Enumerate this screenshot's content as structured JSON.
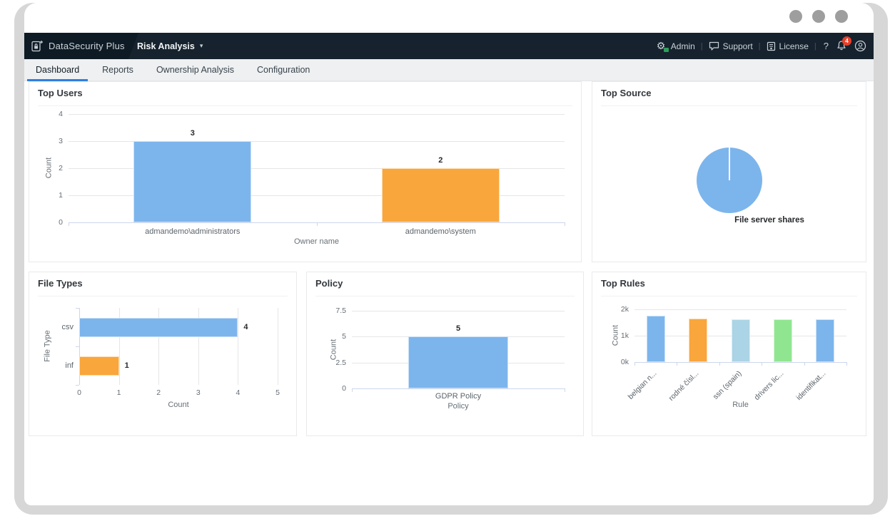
{
  "window": {
    "control_dots": 3
  },
  "app_header": {
    "brand": "DataSecurity Plus",
    "module": "Risk Analysis",
    "caret": "▾",
    "separator": "|",
    "links": [
      {
        "label": "Admin",
        "icon": "gear-icon"
      },
      {
        "label": "Support",
        "icon": "chat-icon"
      },
      {
        "label": "License",
        "icon": "license-icon"
      }
    ],
    "help": "?",
    "notifications": {
      "count": "4"
    },
    "colors": {
      "header_bg": "#16222d",
      "logo_bg": "#0e1b25",
      "badge_red": "#e8402a",
      "badge_green": "#2e9e5b",
      "active_tab_underline": "#2e7fe0"
    }
  },
  "tabs": [
    {
      "label": "Dashboard",
      "active": true
    },
    {
      "label": "Reports",
      "active": false
    },
    {
      "label": "Ownership Analysis",
      "active": false
    },
    {
      "label": "Configuration",
      "active": false
    }
  ],
  "chart_data": [
    {
      "id": "top-users",
      "type": "bar",
      "orientation": "vertical",
      "title": "Top Users",
      "xlabel": "Owner name",
      "ylabel": "Count",
      "categories": [
        "admandemo\\administrators",
        "admandemo\\system"
      ],
      "values": [
        3,
        2
      ],
      "colors": [
        "#7cb5ec",
        "#f9a63c"
      ],
      "yticks": [
        0,
        1,
        2,
        3,
        4
      ],
      "ylim": [
        0,
        4
      ],
      "show_values": true,
      "grid": true,
      "legend": "none"
    },
    {
      "id": "top-source",
      "type": "pie",
      "title": "Top Source",
      "slices": [
        {
          "label": "File server shares",
          "value": 100,
          "color": "#7cb5ec"
        }
      ],
      "legend": "none"
    },
    {
      "id": "file-types",
      "type": "bar",
      "orientation": "horizontal",
      "title": "File Types",
      "xlabel": "Count",
      "ylabel": "File Type",
      "categories": [
        "csv",
        "inf"
      ],
      "values": [
        4,
        1
      ],
      "colors": [
        "#7cb5ec",
        "#f9a63c"
      ],
      "xticks": [
        0,
        1,
        2,
        3,
        4,
        5
      ],
      "xlim": [
        0,
        5
      ],
      "show_values": true,
      "grid": true,
      "legend": "none"
    },
    {
      "id": "policy",
      "type": "bar",
      "orientation": "vertical",
      "title": "Policy",
      "xlabel": "Policy",
      "ylabel": "Count",
      "categories": [
        "GDPR Policy"
      ],
      "values": [
        5
      ],
      "colors": [
        "#7cb5ec"
      ],
      "yticks": [
        0,
        2.5,
        5,
        7.5
      ],
      "ylim": [
        0,
        7.5
      ],
      "show_values": true,
      "grid": true,
      "legend": "none"
    },
    {
      "id": "top-rules",
      "type": "bar",
      "orientation": "vertical",
      "title": "Top Rules",
      "xlabel": "Rule",
      "ylabel": "Count",
      "categories": [
        "belgian n...",
        "rodné čísl...",
        "ssn (spain)",
        "drivers lic...",
        "identifikat..."
      ],
      "values": [
        1750,
        1650,
        1620,
        1620,
        1620
      ],
      "colors": [
        "#7cb5ec",
        "#f9a63c",
        "#abd4e6",
        "#90e690",
        "#7cb5ec"
      ],
      "yticks": [
        0,
        1000,
        2000
      ],
      "ylim": [
        0,
        2000
      ],
      "ytick_suffix": "k",
      "rotate_labels": true,
      "show_values": false,
      "grid": true,
      "legend": "none"
    }
  ]
}
